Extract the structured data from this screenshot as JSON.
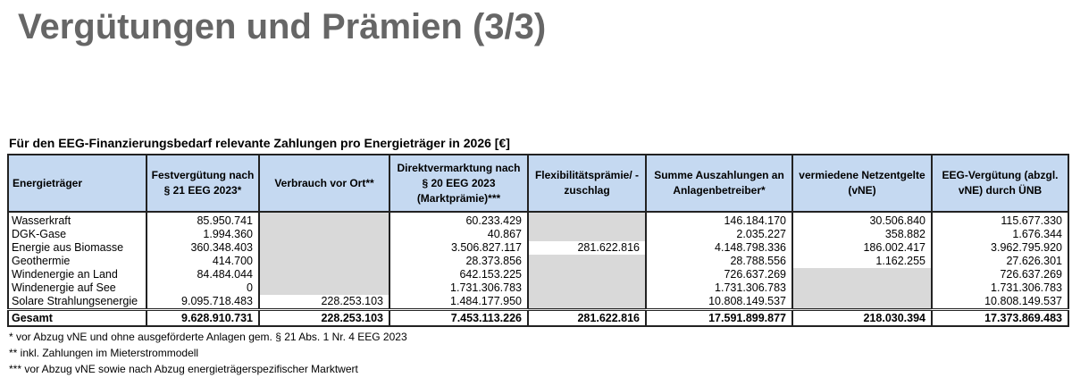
{
  "title": "Vergütungen und Prämien (3/3)",
  "caption": "Für den EEG-Finanzierungsbedarf relevante Zahlungen pro Energieträger in 2026 [€]",
  "colors": {
    "header_bg": "#c5d9f1",
    "empty_cell": "#d9d9d9",
    "title": "#666666"
  },
  "headers": [
    "Energieträger",
    "Festvergütung nach § 21 EEG 2023*",
    "Verbrauch vor Ort**",
    "Direktvermarktung nach § 20 EEG 2023 (Marktprämie)***",
    "Flexibilitätsprämie/ -zuschlag",
    "Summe Auszahlungen an Anlagenbetreiber*",
    "vermiedene Netzentgelte (vNE)",
    "EEG-Vergütung (abzgl. vNE) durch ÜNB"
  ],
  "rows": [
    [
      "Wasserkraft",
      "85.950.741",
      "",
      "60.233.429",
      "",
      "146.184.170",
      "30.506.840",
      "115.677.330"
    ],
    [
      "DGK-Gase",
      "1.994.360",
      "",
      "40.867",
      "",
      "2.035.227",
      "358.882",
      "1.676.344"
    ],
    [
      "Energie aus Biomasse",
      "360.348.403",
      "",
      "3.506.827.117",
      "281.622.816",
      "4.148.798.336",
      "186.002.417",
      "3.962.795.920"
    ],
    [
      "Geothermie",
      "414.700",
      "",
      "28.373.856",
      "",
      "28.788.556",
      "1.162.255",
      "27.626.301"
    ],
    [
      "Windenergie an Land",
      "84.484.044",
      "",
      "642.153.225",
      "",
      "726.637.269",
      "",
      "726.637.269"
    ],
    [
      "Windenergie auf See",
      "0",
      "",
      "1.731.306.783",
      "",
      "1.731.306.783",
      "",
      "1.731.306.783"
    ],
    [
      "Solare Strahlungsenergie",
      "9.095.718.483",
      "228.253.103",
      "1.484.177.950",
      "",
      "10.808.149.537",
      "",
      "10.808.149.537"
    ]
  ],
  "total": [
    "Gesamt",
    "9.628.910.731",
    "228.253.103",
    "7.453.113.226",
    "281.622.816",
    "17.591.899.877",
    "218.030.394",
    "17.373.869.483"
  ],
  "notes": [
    "* vor Abzug vNE und ohne ausgeförderte Anlagen gem. § 21 Abs. 1 Nr. 4 EEG 2023",
    "** inkl. Zahlungen im Mieterstrommodell",
    "*** vor Abzug vNE sowie nach Abzug energieträgerspezifischer Marktwert"
  ]
}
